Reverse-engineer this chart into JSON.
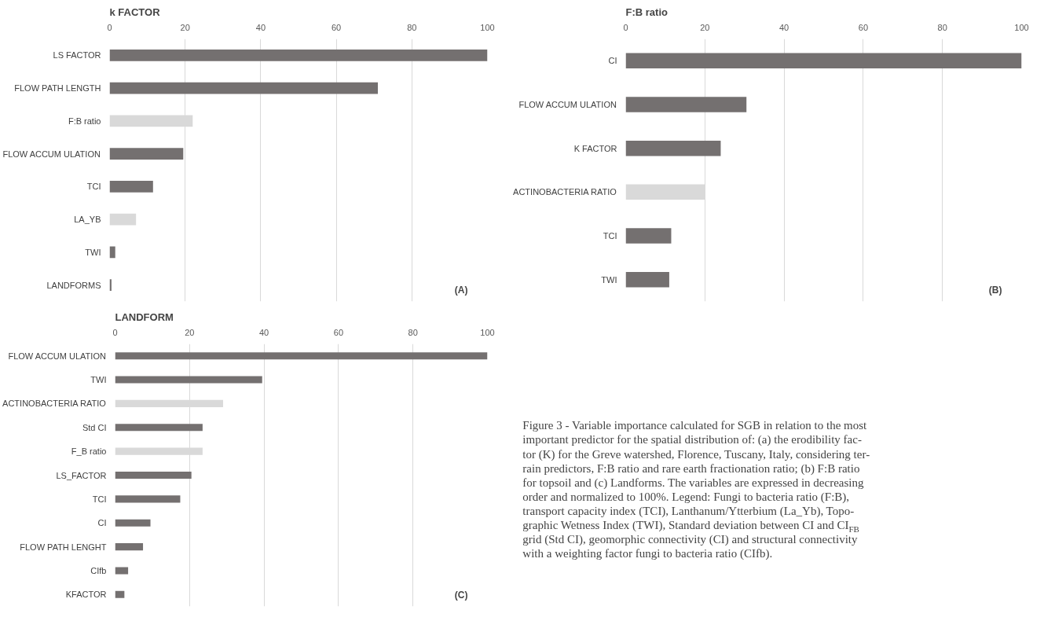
{
  "chart_data": [
    {
      "type": "bar",
      "orientation": "horizontal",
      "title": "k FACTOR",
      "categories": [
        "LS FACTOR",
        "FLOW PATH LENGTH",
        "F:B ratio",
        "FLOW ACCUM ULATION",
        "TCI",
        "LA_YB",
        "TWI",
        "LANDFORMS"
      ],
      "values": [
        100,
        71,
        22,
        19.5,
        11.5,
        7,
        1.5,
        0.5
      ],
      "colors": [
        "#747070",
        "#747070",
        "#d9d9d9",
        "#747070",
        "#747070",
        "#d9d9d9",
        "#747070",
        "#747070"
      ],
      "xlim": [
        0,
        100
      ],
      "xticks": [
        0,
        20,
        40,
        60,
        80,
        100
      ],
      "grid": "x",
      "annotations": [
        "(A)"
      ]
    },
    {
      "type": "bar",
      "orientation": "horizontal",
      "title": "F:B ratio",
      "categories": [
        "CI",
        "FLOW ACCUM ULATION",
        "K FACTOR",
        "ACTINOBACTERIA RATIO",
        "TCI",
        "TWI"
      ],
      "values": [
        100,
        30.5,
        24,
        20,
        11.5,
        11
      ],
      "colors": [
        "#747070",
        "#747070",
        "#747070",
        "#d9d9d9",
        "#747070",
        "#747070"
      ],
      "xlim": [
        0,
        100
      ],
      "xticks": [
        0,
        20,
        40,
        60,
        80,
        100
      ],
      "grid": "x",
      "annotations": [
        "(B)"
      ]
    },
    {
      "type": "bar",
      "orientation": "horizontal",
      "title": "LANDFORM",
      "categories": [
        "FLOW ACCUM ULATION",
        "TWI",
        "ACTINOBACTERIA RATIO",
        "Std CI",
        "F_B ratio",
        "LS_FACTOR",
        "TCI",
        "CI",
        "FLOW PATH LENGHT",
        "CIfb",
        "KFACTOR"
      ],
      "values": [
        100,
        39.5,
        29,
        23.5,
        23.5,
        20.5,
        17.5,
        9.5,
        7.5,
        3.5,
        2.5
      ],
      "colors": [
        "#747070",
        "#747070",
        "#d9d9d9",
        "#747070",
        "#d9d9d9",
        "#747070",
        "#747070",
        "#747070",
        "#747070",
        "#747070",
        "#747070"
      ],
      "xlim": [
        0,
        100
      ],
      "xticks": [
        0,
        20,
        40,
        60,
        80,
        100
      ],
      "grid": "x",
      "annotations": [
        "(C)"
      ]
    },
    {
      "type": "other",
      "annotations": [
        "Figure 3 - Variable importance calculated for SGB in relation to the most\nimportant predictor for the spatial distribution of: (a) the erodibility fac-\ntor (K) for the Greve watershed, Florence, Tuscany, Italy, considering ter-\nrain predictors, F:B ratio and rare earth fractionation ratio; (b) F:B ratio\nfor topsoil and (c) Landforms. The variables are expressed in decreasing\norder and normalized to 100%. Legend: Fungi to bacteria ratio (F:B),\ntransport capacity index (TCI), Lanthanum/Ytterbium (La_Yb), Topo-\ngraphic Wetness Index (TWI), Standard deviation between CI and CI$_{FB}$\ngrid (Std CI), geomorphic connectivity (CI) and structural connectivity\nwith a weighting factor fungi to bacteria ratio (CIfb)."
      ]
    }
  ]
}
